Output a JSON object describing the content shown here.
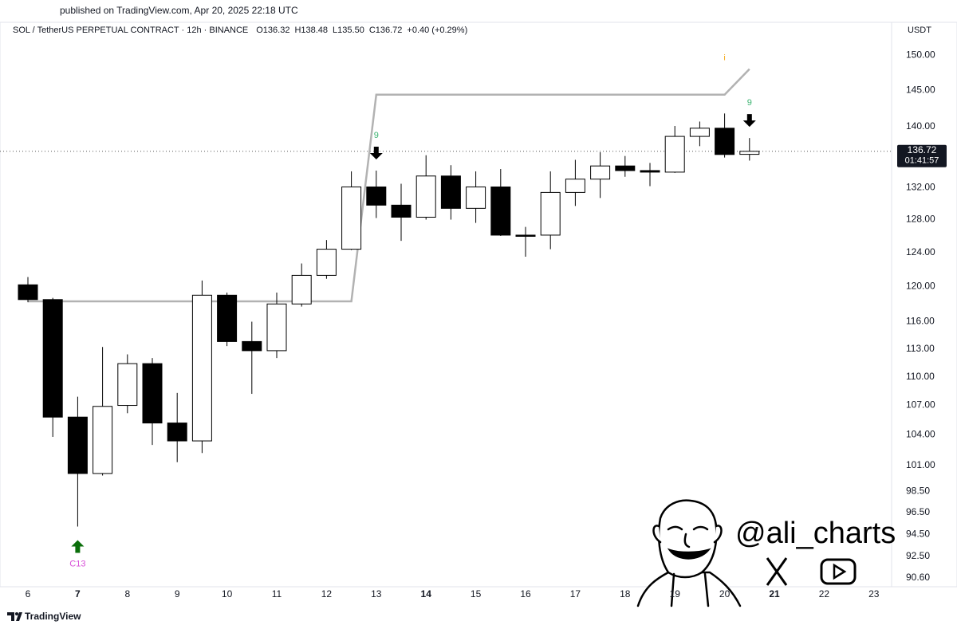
{
  "published": "published on TradingView.com, Apr 20, 2025 22:18 UTC",
  "brand": "TradingView",
  "watermark": "@ali_charts",
  "chart_data": {
    "type": "candlestick",
    "title": "SOL / TetherUS PERPETUAL CONTRACT · 12h · BINANCE",
    "quote": [
      "O136.32",
      "H138.48",
      "L135.50",
      "C136.72",
      "+0.40 (+0.29%)"
    ],
    "currency": "USDT",
    "x_labels": [
      "6",
      "7",
      "8",
      "9",
      "10",
      "11",
      "12",
      "13",
      "14",
      "15",
      "16",
      "17",
      "18",
      "19",
      "20",
      "21",
      "22",
      "23"
    ],
    "x_label_bold": [
      false,
      true,
      false,
      false,
      false,
      false,
      false,
      false,
      true,
      false,
      false,
      false,
      false,
      false,
      false,
      true,
      false,
      false
    ],
    "open": [
      120.2,
      118.5,
      105.8,
      100.2,
      107.0,
      111.4,
      105.2,
      103.4,
      119.0,
      113.8,
      112.8,
      118.0,
      121.3,
      124.4,
      132.1,
      129.8,
      128.3,
      133.5,
      129.4,
      132.1,
      126.1,
      126.1,
      131.4,
      133.1,
      134.8,
      134.2,
      134.0,
      138.7,
      139.8,
      136.32
    ],
    "high": [
      121.1,
      118.7,
      107.9,
      113.2,
      112.4,
      112.0,
      108.3,
      120.7,
      119.3,
      116.0,
      119.3,
      122.7,
      125.5,
      134.1,
      134.2,
      132.5,
      136.2,
      134.9,
      134.1,
      134.4,
      127.1,
      134.1,
      135.6,
      136.6,
      136.1,
      135.2,
      140.1,
      140.7,
      141.8,
      138.48
    ],
    "low": [
      118.2,
      103.8,
      95.2,
      100.0,
      106.2,
      103.0,
      101.3,
      102.2,
      113.3,
      108.2,
      112.0,
      117.7,
      120.9,
      124.3,
      128.2,
      125.4,
      128.0,
      128.0,
      127.6,
      126.0,
      123.5,
      124.4,
      129.7,
      130.7,
      133.4,
      132.2,
      133.9,
      137.4,
      135.9,
      135.5
    ],
    "close": [
      118.5,
      105.8,
      100.2,
      106.9,
      111.4,
      105.2,
      103.4,
      119.0,
      113.8,
      112.8,
      118.0,
      121.3,
      124.4,
      132.1,
      129.8,
      128.3,
      133.5,
      129.4,
      132.1,
      126.1,
      126.0,
      131.4,
      133.1,
      134.8,
      134.2,
      134.0,
      138.7,
      139.8,
      136.3,
      136.72
    ],
    "up_color": "#ffffff",
    "down_color": "#000000",
    "wick_color": "#000000",
    "line": {
      "color": "#b2b2b2",
      "values": [
        118.3,
        118.3,
        118.3,
        118.3,
        118.3,
        118.3,
        118.3,
        118.3,
        118.3,
        118.3,
        118.3,
        118.3,
        118.3,
        118.3,
        144.4,
        144.4,
        144.4,
        144.4,
        144.4,
        144.4,
        144.4,
        144.4,
        144.4,
        144.4,
        144.4,
        144.4,
        144.4,
        144.4,
        144.4,
        148.0
      ]
    },
    "signal_labels": [
      null,
      null,
      "C13",
      null,
      null,
      null,
      null,
      null,
      null,
      null,
      null,
      null,
      null,
      null,
      "9",
      null,
      null,
      null,
      null,
      null,
      null,
      null,
      null,
      null,
      null,
      null,
      null,
      null,
      null,
      "9"
    ],
    "signal_arrows": [
      null,
      null,
      "up",
      null,
      null,
      null,
      null,
      null,
      null,
      null,
      null,
      null,
      null,
      null,
      "down",
      null,
      null,
      null,
      null,
      null,
      null,
      null,
      null,
      null,
      null,
      null,
      null,
      null,
      null,
      "down"
    ],
    "signal_colors": [
      null,
      null,
      "#d84fd8",
      null,
      null,
      null,
      null,
      null,
      null,
      null,
      null,
      null,
      null,
      null,
      "#3cb371",
      null,
      null,
      null,
      null,
      null,
      null,
      null,
      null,
      null,
      null,
      null,
      null,
      null,
      null,
      "#3cb371"
    ],
    "arrow_colors": [
      null,
      null,
      "#0a6e0a",
      null,
      null,
      null,
      null,
      null,
      null,
      null,
      null,
      null,
      null,
      null,
      "#000000",
      null,
      null,
      null,
      null,
      null,
      null,
      null,
      null,
      null,
      null,
      null,
      null,
      null,
      null,
      "#000000"
    ],
    "flags": [
      null,
      null,
      null,
      null,
      null,
      null,
      null,
      null,
      null,
      null,
      null,
      null,
      null,
      null,
      null,
      null,
      null,
      null,
      null,
      null,
      null,
      null,
      null,
      null,
      null,
      null,
      null,
      null,
      "i",
      null
    ],
    "flag_color": "#f5a000",
    "last_price": 136.72,
    "countdown": "01:41:57",
    "log_scale": true,
    "grid": false,
    "ylim": [
      89.9,
      152
    ],
    "yticks": [
      {
        "value": 150,
        "label": "150.00"
      },
      {
        "value": 145,
        "label": "145.00"
      },
      {
        "value": 140,
        "label": "140.00"
      },
      {
        "value": 132,
        "label": "132.00"
      },
      {
        "value": 128,
        "label": "128.00"
      },
      {
        "value": 124,
        "label": "124.00"
      },
      {
        "value": 120,
        "label": "120.00"
      },
      {
        "value": 116,
        "label": "116.00"
      },
      {
        "value": 113,
        "label": "113.00"
      },
      {
        "value": 110,
        "label": "110.00"
      },
      {
        "value": 107,
        "label": "107.00"
      },
      {
        "value": 104,
        "label": "104.00"
      },
      {
        "value": 101,
        "label": "101.00"
      },
      {
        "value": 98.5,
        "label": "98.50"
      },
      {
        "value": 96.5,
        "label": "96.50"
      },
      {
        "value": 94.5,
        "label": "94.50"
      },
      {
        "value": 92.5,
        "label": "92.50"
      },
      {
        "value": 90.6,
        "label": "90.60"
      }
    ]
  }
}
